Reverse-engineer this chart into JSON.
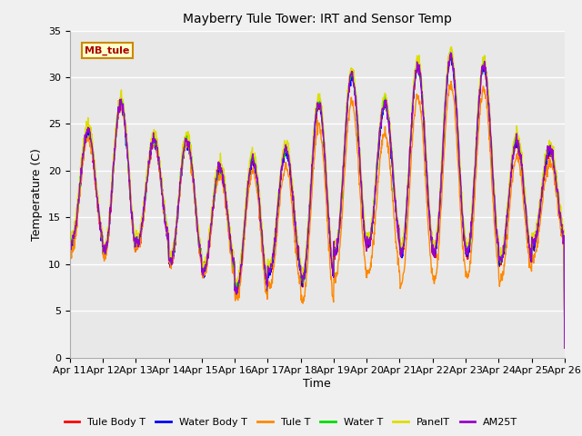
{
  "title": "Mayberry Tule Tower: IRT and Sensor Temp",
  "xlabel": "Time",
  "ylabel": "Temperature (C)",
  "ylim": [
    0,
    35
  ],
  "yticks": [
    0,
    5,
    10,
    15,
    20,
    25,
    30,
    35
  ],
  "fig_bg_color": "#f0f0f0",
  "plot_bg_color": "#e8e8e8",
  "series": [
    {
      "label": "Tule Body T",
      "color": "#ff0000"
    },
    {
      "label": "Water Body T",
      "color": "#0000ff"
    },
    {
      "label": "Tule T",
      "color": "#ff8800"
    },
    {
      "label": "Water T",
      "color": "#00dd00"
    },
    {
      "label": "PanelT",
      "color": "#dddd00"
    },
    {
      "label": "AM25T",
      "color": "#9900cc"
    }
  ],
  "annotation_text": "MB_tule",
  "annotation_bg": "#ffffcc",
  "annotation_border": "#cc8800",
  "annotation_text_color": "#aa0000",
  "start_day": 11,
  "end_day": 26,
  "n_days": 15,
  "points_per_day": 96,
  "grid_color": "#ffffff",
  "grid_linewidth": 1.0,
  "line_width": 1.0
}
